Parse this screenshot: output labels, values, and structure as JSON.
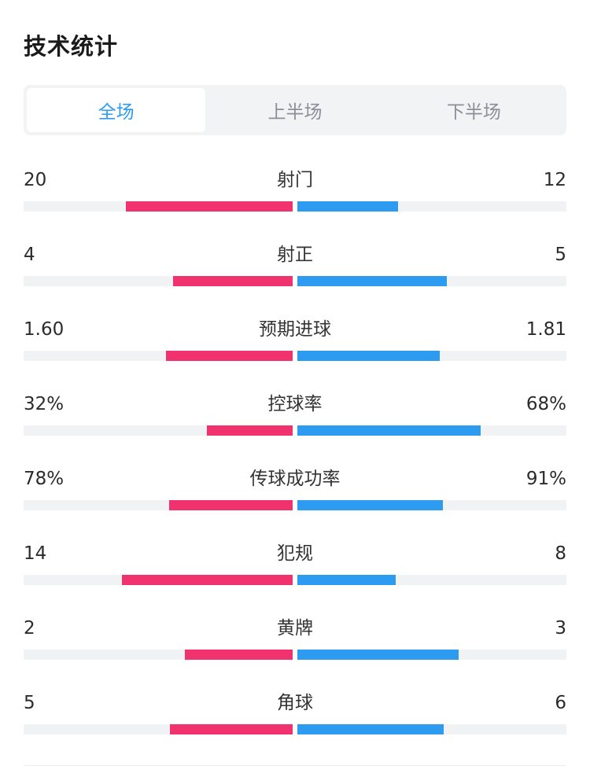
{
  "header": {
    "title": "技术统计"
  },
  "tabs": [
    {
      "label": "全场",
      "active": true
    },
    {
      "label": "上半场",
      "active": false
    },
    {
      "label": "下半场",
      "active": false
    }
  ],
  "colors": {
    "home": "#f0336f",
    "away": "#2d9cf0",
    "track": "#f1f2f4",
    "active_tab": "#2d9cf0"
  },
  "stats": [
    {
      "name": "射门",
      "home": "20",
      "away": "12",
      "home_ratio": 0.62,
      "away_ratio": 0.375
    },
    {
      "name": "射正",
      "home": "4",
      "away": "5",
      "home_ratio": 0.445,
      "away_ratio": 0.555
    },
    {
      "name": "预期进球",
      "home": "1.60",
      "away": "1.81",
      "home_ratio": 0.47,
      "away_ratio": 0.53
    },
    {
      "name": "控球率",
      "home": "32%",
      "away": "68%",
      "home_ratio": 0.32,
      "away_ratio": 0.68
    },
    {
      "name": "传球成功率",
      "home": "78%",
      "away": "91%",
      "home_ratio": 0.46,
      "away_ratio": 0.54
    },
    {
      "name": "犯规",
      "home": "14",
      "away": "8",
      "home_ratio": 0.635,
      "away_ratio": 0.365
    },
    {
      "name": "黄牌",
      "home": "2",
      "away": "3",
      "home_ratio": 0.4,
      "away_ratio": 0.6
    },
    {
      "name": "角球",
      "home": "5",
      "away": "6",
      "home_ratio": 0.455,
      "away_ratio": 0.545
    }
  ]
}
